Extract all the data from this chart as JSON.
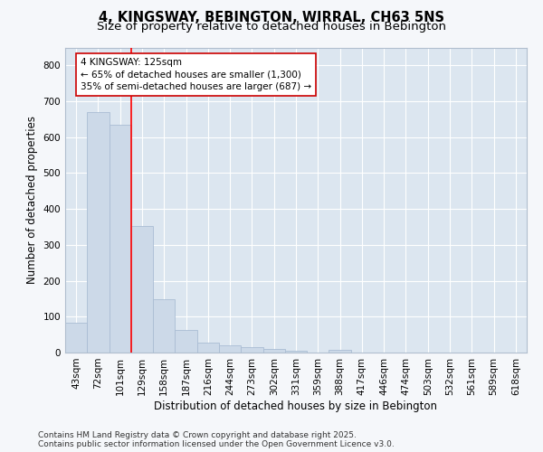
{
  "title": "4, KINGSWAY, BEBINGTON, WIRRAL, CH63 5NS",
  "subtitle": "Size of property relative to detached houses in Bebington",
  "xlabel": "Distribution of detached houses by size in Bebington",
  "ylabel": "Number of detached properties",
  "categories": [
    "43sqm",
    "72sqm",
    "101sqm",
    "129sqm",
    "158sqm",
    "187sqm",
    "216sqm",
    "244sqm",
    "273sqm",
    "302sqm",
    "331sqm",
    "359sqm",
    "388sqm",
    "417sqm",
    "446sqm",
    "474sqm",
    "503sqm",
    "532sqm",
    "561sqm",
    "589sqm",
    "618sqm"
  ],
  "values": [
    83,
    670,
    635,
    352,
    148,
    62,
    27,
    20,
    16,
    10,
    5,
    0,
    7,
    0,
    0,
    0,
    0,
    0,
    0,
    0,
    0
  ],
  "bar_color": "#ccd9e8",
  "bar_edge_color": "#aabdd4",
  "annotation_text": "4 KINGSWAY: 125sqm\n← 65% of detached houses are smaller (1,300)\n35% of semi-detached houses are larger (687) →",
  "annotation_box_color": "#ffffff",
  "annotation_box_edge_color": "#cc0000",
  "ylim": [
    0,
    850
  ],
  "yticks": [
    0,
    100,
    200,
    300,
    400,
    500,
    600,
    700,
    800
  ],
  "background_color": "#dce6f0",
  "grid_color": "#ffffff",
  "fig_background_color": "#f5f7fa",
  "footer_line1": "Contains HM Land Registry data © Crown copyright and database right 2025.",
  "footer_line2": "Contains public sector information licensed under the Open Government Licence v3.0.",
  "title_fontsize": 10.5,
  "subtitle_fontsize": 9.5,
  "axis_label_fontsize": 8.5,
  "tick_fontsize": 7.5,
  "annotation_fontsize": 7.5,
  "footer_fontsize": 6.5
}
